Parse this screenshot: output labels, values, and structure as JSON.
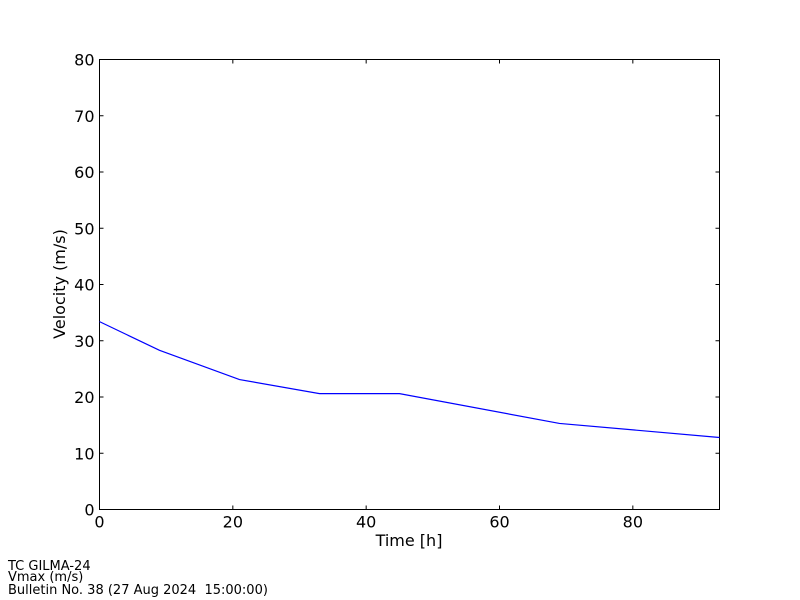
{
  "chart_data": {
    "type": "line",
    "x_label": "Time [h]",
    "y_label": "Velocity (m/s)",
    "x": [
      0,
      9,
      21,
      33,
      45,
      69,
      93
    ],
    "series": [
      {
        "name": "Vmax (m/s)",
        "color": "#0000ff",
        "values": [
          33.4,
          28.3,
          23.1,
          20.6,
          20.6,
          15.3,
          12.8
        ]
      }
    ],
    "xlim": [
      0,
      93
    ],
    "ylim": [
      0,
      80
    ],
    "xticks": [
      0,
      20,
      40,
      60,
      80
    ],
    "yticks": [
      0,
      10,
      20,
      30,
      40,
      50,
      60,
      70,
      80
    ],
    "grid": false,
    "annotations": [
      "TC GILMA-24",
      "Vmax (m/s)",
      "Bulletin No. 38 (27 Aug 2024  15:00:00)"
    ]
  }
}
